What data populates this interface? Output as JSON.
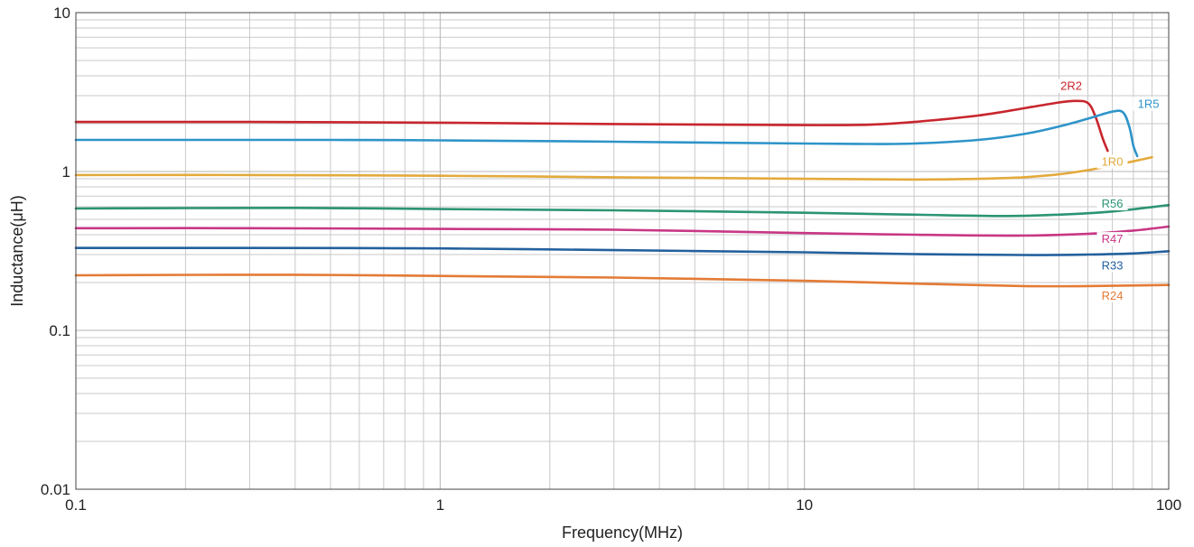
{
  "chart_data": {
    "type": "line",
    "title": "",
    "xlabel": "Frequency(MHz)",
    "ylabel": "Inductance(μH)",
    "x_scale": "log",
    "y_scale": "log",
    "xlim": [
      0.1,
      100
    ],
    "ylim": [
      0.01,
      10
    ],
    "grid": true,
    "x_ticks": [
      0.1,
      1,
      10,
      100
    ],
    "x_tick_labels": [
      "0.1",
      "1",
      "10",
      "100"
    ],
    "y_ticks": [
      0.01,
      0.1,
      1,
      10
    ],
    "y_tick_labels": [
      "0.01",
      "0.1",
      "1",
      "10"
    ],
    "series": [
      {
        "name": "2R2",
        "color": "#c8262d",
        "points": [
          [
            0.1,
            2.05
          ],
          [
            0.3,
            2.05
          ],
          [
            1,
            2.03
          ],
          [
            3,
            1.99
          ],
          [
            10,
            1.96
          ],
          [
            15,
            1.97
          ],
          [
            20,
            2.05
          ],
          [
            30,
            2.25
          ],
          [
            40,
            2.5
          ],
          [
            50,
            2.72
          ],
          [
            55,
            2.78
          ],
          [
            60,
            2.7
          ],
          [
            63,
            2.2
          ],
          [
            66,
            1.6
          ],
          [
            68,
            1.35
          ]
        ],
        "label_at": [
          54,
          3.3
        ]
      },
      {
        "name": "1R5",
        "color": "#2e94c9",
        "points": [
          [
            0.1,
            1.58
          ],
          [
            0.5,
            1.58
          ],
          [
            1,
            1.57
          ],
          [
            3,
            1.54
          ],
          [
            10,
            1.5
          ],
          [
            15,
            1.49
          ],
          [
            20,
            1.5
          ],
          [
            30,
            1.58
          ],
          [
            40,
            1.72
          ],
          [
            50,
            1.92
          ],
          [
            60,
            2.15
          ],
          [
            70,
            2.38
          ],
          [
            75,
            2.35
          ],
          [
            78,
            1.9
          ],
          [
            80,
            1.45
          ],
          [
            82,
            1.25
          ]
        ],
        "label_at": [
          88,
          2.55
        ]
      },
      {
        "name": "1R0",
        "color": "#e3aa3c",
        "points": [
          [
            0.1,
            0.95
          ],
          [
            0.3,
            0.95
          ],
          [
            1,
            0.94
          ],
          [
            3,
            0.92
          ],
          [
            10,
            0.9
          ],
          [
            20,
            0.89
          ],
          [
            30,
            0.9
          ],
          [
            40,
            0.92
          ],
          [
            50,
            0.96
          ],
          [
            60,
            1.02
          ],
          [
            70,
            1.09
          ],
          [
            80,
            1.16
          ],
          [
            90,
            1.23
          ]
        ],
        "label_at": [
          70,
          1.1
        ]
      },
      {
        "name": "R56",
        "color": "#2c9474",
        "points": [
          [
            0.1,
            0.585
          ],
          [
            0.4,
            0.59
          ],
          [
            1,
            0.58
          ],
          [
            3,
            0.57
          ],
          [
            10,
            0.55
          ],
          [
            20,
            0.535
          ],
          [
            35,
            0.525
          ],
          [
            50,
            0.535
          ],
          [
            70,
            0.56
          ],
          [
            100,
            0.615
          ]
        ],
        "label_at": [
          70,
          0.6
        ]
      },
      {
        "name": "R47",
        "color": "#c83785",
        "points": [
          [
            0.1,
            0.44
          ],
          [
            0.3,
            0.44
          ],
          [
            1,
            0.435
          ],
          [
            3,
            0.43
          ],
          [
            10,
            0.41
          ],
          [
            20,
            0.4
          ],
          [
            40,
            0.395
          ],
          [
            60,
            0.405
          ],
          [
            80,
            0.425
          ],
          [
            100,
            0.45
          ]
        ],
        "label_at": [
          70,
          0.36
        ]
      },
      {
        "name": "R33",
        "color": "#23609d",
        "points": [
          [
            0.1,
            0.33
          ],
          [
            0.3,
            0.33
          ],
          [
            1,
            0.328
          ],
          [
            3,
            0.32
          ],
          [
            10,
            0.31
          ],
          [
            20,
            0.302
          ],
          [
            40,
            0.298
          ],
          [
            60,
            0.3
          ],
          [
            80,
            0.305
          ],
          [
            100,
            0.315
          ]
        ],
        "label_at": [
          70,
          0.245
        ]
      },
      {
        "name": "R24",
        "color": "#e37b36",
        "points": [
          [
            0.1,
            0.222
          ],
          [
            0.4,
            0.224
          ],
          [
            1,
            0.22
          ],
          [
            3,
            0.215
          ],
          [
            10,
            0.205
          ],
          [
            20,
            0.197
          ],
          [
            40,
            0.19
          ],
          [
            60,
            0.19
          ],
          [
            100,
            0.193
          ]
        ],
        "label_at": [
          70,
          0.158
        ]
      }
    ]
  }
}
